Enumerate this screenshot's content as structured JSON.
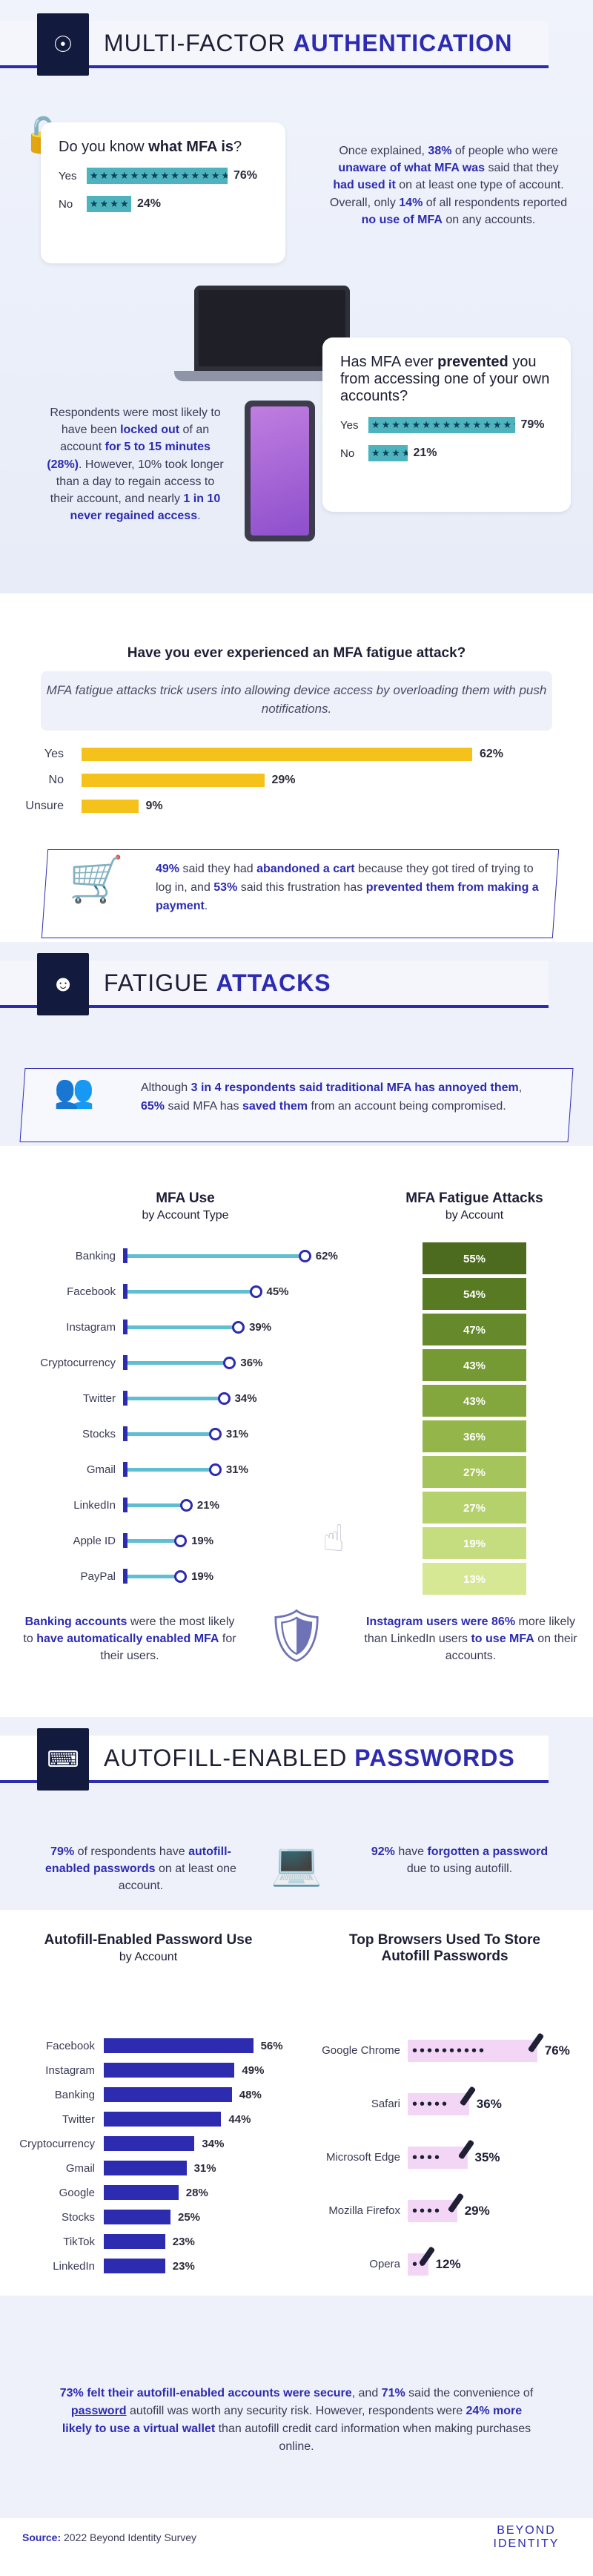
{
  "s1": {
    "banner": {
      "title_a": "MULTI-FACTOR ",
      "title_b": "AUTHENTICATION",
      "icon": "fingerprint-lock-icon"
    },
    "q1": {
      "text_a": "Do you know ",
      "text_b": "what MFA is",
      "text_c": "?",
      "rows": [
        {
          "label": "Yes",
          "value": 76
        },
        {
          "label": "No",
          "value": 24
        }
      ]
    },
    "p1": {
      "a": "Once explained, ",
      "b": "38%",
      "c": " of people who were ",
      "d": "unaware of what MFA was",
      "e": " said that they ",
      "f": "had used it",
      "g": " on at least one type of account. Overall, only ",
      "h": "14%",
      "i": " of all respondents reported ",
      "j": "no use of MFA",
      "k": " on any accounts."
    },
    "q2": {
      "text_a": "Has MFA ever ",
      "text_b": "prevented",
      "text_c": " you from accessing one of your own accounts?",
      "rows": [
        {
          "label": "Yes",
          "value": 79
        },
        {
          "label": "No",
          "value": 21
        }
      ]
    },
    "p2": {
      "a": "Respondents were most likely to have been ",
      "b": "locked out",
      "c": " of an account ",
      "d": "for 5 to 15 minutes (28%)",
      "e": ". However, 10% took longer than a day to regain access to their account, and nearly ",
      "f": "1 in 10",
      "g": " ",
      "h": "never regained access",
      "i": "."
    }
  },
  "s2": {
    "title": "Have you ever experienced an MFA fatigue attack?",
    "note": "MFA fatigue attacks trick users into allowing device access by overloading them with push notifications.",
    "chart_data": {
      "type": "bar",
      "categories": [
        "Yes",
        "No",
        "Unsure"
      ],
      "values": [
        62,
        29,
        9
      ]
    },
    "cart": {
      "a": "49%",
      "b": " said they had ",
      "c": "abandoned a cart",
      "d": " because they got tired of trying to log in, and ",
      "e": "53%",
      "f": " said this frustration has ",
      "g": "prevented them from making a payment",
      "h": "."
    }
  },
  "s3": {
    "banner": {
      "title_a": "FATIGUE ",
      "title_b": "ATTACKS"
    },
    "text": {
      "a": "Although ",
      "b": "3 in 4 respondents said traditional MFA has annoyed them",
      "c": ", ",
      "d": "65%",
      "e": " said MFA has ",
      "f": "saved them",
      "g": " from an account being compromised."
    }
  },
  "s4": {
    "left_title": "MFA Use",
    "left_sub": "by Account Type",
    "right_title": "MFA Fatigue Attacks",
    "right_sub": "by Account",
    "chart_data": [
      {
        "type": "bar",
        "title": "MFA Use",
        "categories": [
          "Banking",
          "Facebook",
          "Instagram",
          "Cryptocurrency",
          "Twitter",
          "Stocks",
          "Gmail",
          "LinkedIn",
          "Apple ID",
          "PayPal"
        ],
        "values": [
          62,
          45,
          39,
          36,
          34,
          31,
          31,
          21,
          19,
          19
        ]
      },
      {
        "type": "heatmap",
        "title": "MFA Fatigue Attacks",
        "values": [
          55,
          54,
          47,
          43,
          43,
          36,
          27,
          27,
          19,
          13
        ],
        "colors": [
          "#4d6b1e",
          "#587a23",
          "#66892b",
          "#769a33",
          "#83a73c",
          "#94b54a",
          "#a6c45c",
          "#b5d16c",
          "#c6dd7f",
          "#d6e894"
        ]
      }
    ],
    "f1": {
      "a": "Banking accounts",
      "b": " were the most likely to ",
      "c": "have automatically enabled MFA",
      "d": " for their users."
    },
    "f2": {
      "a": "Instagram users were 86%",
      "b": " more likely than LinkedIn users ",
      "c": "to use MFA",
      "d": " on their accounts."
    }
  },
  "s5": {
    "banner": {
      "title_a": "AUTOFILL-ENABLED ",
      "title_b": "PASSWORDS"
    },
    "t1": {
      "a": "79%",
      "b": " of respondents have ",
      "c": "autofill-enabled passwords",
      "d": " on at least one account."
    },
    "t2": {
      "a": "92%",
      "b": " have ",
      "c": "forgotten a password",
      "d": " due to using autofill."
    }
  },
  "s6": {
    "left_title": "Autofill-Enabled Password Use",
    "left_sub": "by Account",
    "right_title": "Top Browsers Used To Store Autofill Passwords",
    "chart_data": [
      {
        "type": "bar",
        "title": "Autofill-Enabled Password Use",
        "categories": [
          "Facebook",
          "Instagram",
          "Banking",
          "Twitter",
          "Cryptocurrency",
          "Gmail",
          "Google",
          "Stocks",
          "TikTok",
          "LinkedIn"
        ],
        "values": [
          56,
          49,
          48,
          44,
          34,
          31,
          28,
          25,
          23,
          23
        ]
      },
      {
        "type": "bar",
        "title": "Top Browsers Used To Store Autofill Passwords",
        "categories": [
          "Google Chrome",
          "Safari",
          "Microsoft Edge",
          "Mozilla Firefox",
          "Opera"
        ],
        "values": [
          76,
          36,
          35,
          29,
          12
        ]
      }
    ]
  },
  "s7": {
    "a": "73% felt their autofill-enabled accounts were secure",
    "b": ", and ",
    "c": "71%",
    "d": " said the convenience of ",
    "e": "password",
    "f": " autofill was worth any security risk. However, respondents were ",
    "g": "24% more likely to use a virtual wallet",
    "h": " than autofill credit card information when making purchases online."
  },
  "footer": {
    "source_label": "Source:",
    "source_text": " 2022 Beyond Identity Survey",
    "logo_1": "BEYOND",
    "logo_2": "IDENTITY"
  }
}
